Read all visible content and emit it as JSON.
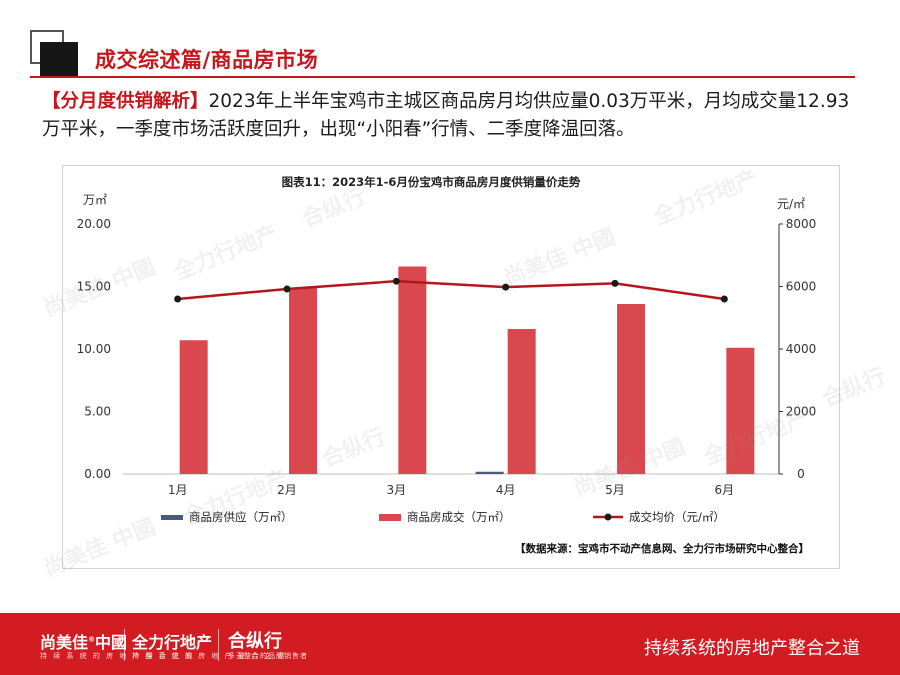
{
  "header": {
    "title": "成交综述篇/商品房市场"
  },
  "intro": {
    "tag": "【分月度供销解析】",
    "text": "2023年上半年宝鸡市主城区商品房月均供应量0.03万平米，月均成交量12.93万平米，一季度市场活跃度回升，出现“小阳春”行情、二季度降温回落。"
  },
  "chart_data": {
    "type": "bar",
    "title": "图表11：2023年1-6月份宝鸡市商品房月度供销量价走势",
    "categories": [
      "1月",
      "2月",
      "3月",
      "4月",
      "5月",
      "6月"
    ],
    "left_axis": {
      "unit": "万㎡",
      "ylim": [
        0,
        20
      ],
      "ticks": [
        "0.00",
        "5.00",
        "10.00",
        "15.00",
        "20.00"
      ],
      "tick_values": [
        0,
        5,
        10,
        15,
        20
      ]
    },
    "right_axis": {
      "unit": "元/㎡",
      "ylim": [
        0,
        8000
      ],
      "ticks": [
        "0",
        "2000",
        "4000",
        "6000",
        "8000"
      ],
      "tick_values": [
        0,
        2000,
        4000,
        6000,
        8000
      ]
    },
    "series": [
      {
        "name": "商品房供应（万㎡）",
        "type": "bar",
        "axis": "left",
        "color": "#4a5a7a",
        "values": [
          0,
          0,
          0,
          0.18,
          0,
          0
        ]
      },
      {
        "name": "商品房成交（万㎡）",
        "type": "bar",
        "axis": "left",
        "color": "#d9484e",
        "values": [
          10.7,
          14.9,
          16.6,
          11.6,
          13.6,
          10.1
        ]
      },
      {
        "name": "成交均价（元/㎡）",
        "type": "line",
        "axis": "right",
        "color": "#b5161c",
        "values": [
          5600,
          5920,
          6170,
          5980,
          6100,
          5600
        ]
      }
    ],
    "legend_position": "bottom",
    "source": "【数据来源：宝鸡市不动产信息网、全力行市场研究中心整合】"
  },
  "watermarks": [
    "尚美佳 中國",
    "全力行地产",
    "合纵行"
  ],
  "footer": {
    "brand1": "尚美佳",
    "brand1_mark": "®",
    "brand1_b": "中國",
    "brand1_sub": "持 续 系 统 的 房 地 产 整 合 之 道",
    "brand2": "全力行地产",
    "brand2_sub": "持 续 系 统 的 房 地 产 整 合 之 道",
    "brand3": "合纵行",
    "brand3_sub": "多元整合的品牌销售者",
    "slogan": "持续系统的房地产整合之道"
  }
}
